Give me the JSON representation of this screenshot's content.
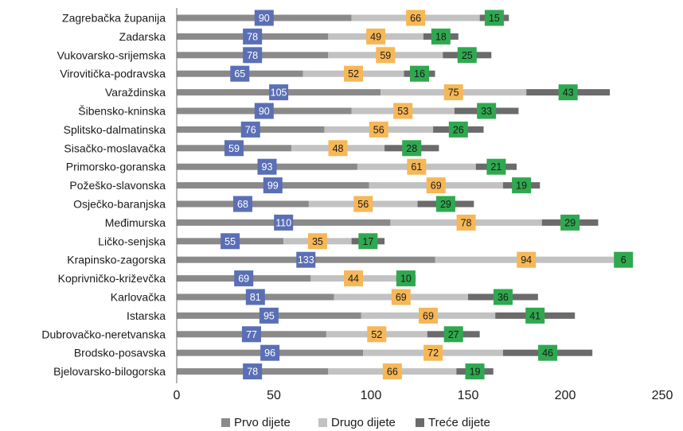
{
  "chart_data": {
    "type": "bar",
    "orientation": "horizontal",
    "stacked": true,
    "categories": [
      "Zagrebačka županija",
      "Zadarska",
      "Vukovarsko-srijemska",
      "Virovitička-podravska",
      "Varaždinska",
      "Šibensko-kninska",
      "Splitsko-dalmatinska",
      "Sisačko-moslavačka",
      "Primorsko-goranska",
      "Požeško-slavonska",
      "Osječko-baranjska",
      "Međimurska",
      "Ličko-senjska",
      "Krapinsko-zagorska",
      "Koprivničko-križevčka",
      "Karlovačka",
      "Istarska",
      "Dubrovačko-neretvanska",
      "Brodsko-posavska",
      "Bjelovarsko-bilogorska"
    ],
    "series": [
      {
        "name": "Prvo dijete",
        "color": "#8a8a8a",
        "label_color": "#5a6fb5",
        "values": [
          90,
          78,
          78,
          65,
          105,
          90,
          76,
          59,
          93,
          99,
          68,
          110,
          55,
          133,
          69,
          81,
          95,
          77,
          96,
          78
        ]
      },
      {
        "name": "Drugo dijete",
        "color": "#c2c2c2",
        "label_color": "#f6b756",
        "values": [
          66,
          49,
          59,
          52,
          75,
          53,
          56,
          48,
          61,
          69,
          56,
          78,
          35,
          94,
          44,
          69,
          69,
          52,
          72,
          66
        ]
      },
      {
        "name": "Treće dijete",
        "color": "#6b6b6b",
        "label_color": "#2fa84f",
        "values": [
          15,
          18,
          25,
          16,
          43,
          33,
          26,
          28,
          21,
          19,
          29,
          29,
          17,
          6,
          10,
          36,
          41,
          27,
          46,
          19
        ]
      }
    ],
    "x_ticks": [
      "0",
      "50",
      "100",
      "150",
      "200",
      "250"
    ],
    "xlim": [
      0,
      250
    ],
    "title": "",
    "xlabel": "",
    "ylabel": "",
    "grid": false,
    "legend_position": "bottom"
  }
}
